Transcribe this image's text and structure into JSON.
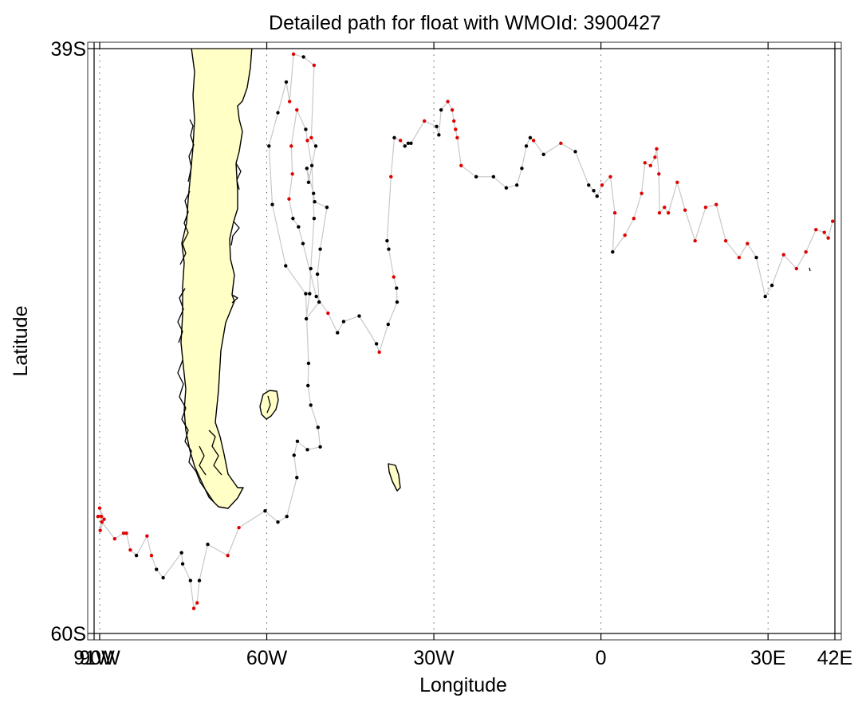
{
  "chart_data": {
    "type": "scatter",
    "title": "Detailed path for float with WMOId: 3900427",
    "xlabel": "Longitude",
    "ylabel": "Latitude",
    "xlim": [
      -91,
      42
    ],
    "ylim": [
      -60,
      -39
    ],
    "x_ticks": [
      {
        "value": -91,
        "label": "91W"
      },
      {
        "value": -90,
        "label": "90W"
      },
      {
        "value": -60,
        "label": "60W"
      },
      {
        "value": -30,
        "label": "30W"
      },
      {
        "value": 0,
        "label": "0"
      },
      {
        "value": 30,
        "label": "30E"
      },
      {
        "value": 42,
        "label": "42E"
      }
    ],
    "y_ticks": [
      {
        "value": -39,
        "label": "39S"
      },
      {
        "value": -60,
        "label": "60S"
      }
    ],
    "grid_x": [
      -90,
      -60,
      -30,
      0,
      30
    ],
    "colors": {
      "land": "#ffffc6",
      "track": "#c8c8c8",
      "point_red": "#e00000",
      "point_black": "#000000"
    },
    "series": [
      {
        "values": [
          [
            -90.3,
            -55.8,
            "r"
          ],
          [
            -89.7,
            -55.8,
            "r"
          ],
          [
            -89.9,
            -56.3,
            "r"
          ],
          [
            -89.2,
            -55.9,
            "r"
          ],
          [
            -90.0,
            -55.5,
            "r"
          ],
          [
            -89.6,
            -56.0,
            "r"
          ],
          [
            -87.3,
            -56.6,
            "r"
          ],
          [
            -85.7,
            -56.4,
            "r"
          ],
          [
            -85.2,
            -56.4,
            "r"
          ],
          [
            -84.5,
            -57.0,
            "r"
          ],
          [
            -83.4,
            -57.2,
            "k"
          ],
          [
            -81.5,
            -56.5,
            "r"
          ],
          [
            -80.7,
            -57.2,
            "r"
          ],
          [
            -79.8,
            -57.7,
            "k"
          ],
          [
            -78.6,
            -58.0,
            "k"
          ],
          [
            -75.3,
            -57.1,
            "k"
          ],
          [
            -75.1,
            -57.5,
            "k"
          ],
          [
            -73.7,
            -58.1,
            "k"
          ],
          [
            -73.1,
            -59.1,
            "r"
          ],
          [
            -72.5,
            -58.9,
            "r"
          ],
          [
            -72.1,
            -58.1,
            "k"
          ],
          [
            -70.6,
            -56.8,
            "k"
          ],
          [
            -67.0,
            -57.2,
            "r"
          ],
          [
            -65.0,
            -56.2,
            "r"
          ],
          [
            -60.3,
            -55.6,
            "k"
          ],
          [
            -58.0,
            -56.0,
            "k"
          ],
          [
            -56.4,
            -55.8,
            "k"
          ],
          [
            -54.6,
            -54.4,
            "k"
          ],
          [
            -55.1,
            -53.6,
            "k"
          ],
          [
            -54.5,
            -53.1,
            "k"
          ],
          [
            -52.7,
            -53.4,
            "k"
          ],
          [
            -50.4,
            -53.3,
            "k"
          ],
          [
            -50.8,
            -52.6,
            "k"
          ],
          [
            -52.1,
            -51.8,
            "k"
          ],
          [
            -52.6,
            -51.1,
            "k"
          ],
          [
            -52.5,
            -50.3,
            "k"
          ],
          [
            -53.0,
            -47.8,
            "k"
          ],
          [
            -56.6,
            -46.8,
            "k"
          ],
          [
            -59.0,
            -44.6,
            "k"
          ],
          [
            -59.6,
            -42.5,
            "k"
          ],
          [
            -58.0,
            -41.3,
            "k"
          ],
          [
            -56.5,
            -40.2,
            "k"
          ],
          [
            -55.9,
            -40.9,
            "r"
          ],
          [
            -55.2,
            -39.2,
            "r"
          ],
          [
            -53.4,
            -39.3,
            "k"
          ],
          [
            -51.5,
            -39.6,
            "r"
          ],
          [
            -52.0,
            -42.2,
            "r"
          ],
          [
            -51.2,
            -42.5,
            "k"
          ],
          [
            -52.5,
            -43.8,
            "k"
          ],
          [
            -52.8,
            -43.3,
            "k"
          ],
          [
            -51.6,
            -44.2,
            "k"
          ],
          [
            -51.4,
            -44.5,
            "k"
          ],
          [
            -49.2,
            -44.7,
            "k"
          ],
          [
            -50.4,
            -46.2,
            "k"
          ],
          [
            -50.9,
            -47.1,
            "k"
          ],
          [
            -50.6,
            -48.1,
            "k"
          ],
          [
            -52.9,
            -48.7,
            "k"
          ],
          [
            -52.3,
            -47.8,
            "k"
          ],
          [
            -52.1,
            -46.9,
            "k"
          ],
          [
            -51.5,
            -45.1,
            "k"
          ],
          [
            -51.9,
            -43.2,
            "k"
          ],
          [
            -52.7,
            -42.3,
            "r"
          ],
          [
            -53.0,
            -41.9,
            "k"
          ],
          [
            -54.6,
            -41.2,
            "r"
          ],
          [
            -55.6,
            -42.5,
            "r"
          ],
          [
            -55.4,
            -43.5,
            "r"
          ],
          [
            -56.0,
            -44.4,
            "r"
          ],
          [
            -55.3,
            -45.1,
            "k"
          ],
          [
            -54.3,
            -45.4,
            "k"
          ],
          [
            -53.5,
            -46.0,
            "k"
          ],
          [
            -51.1,
            -47.9,
            "k"
          ],
          [
            -49.0,
            -48.5,
            "r"
          ],
          [
            -47.3,
            -49.2,
            "k"
          ],
          [
            -46.2,
            -48.8,
            "k"
          ],
          [
            -43.4,
            -48.6,
            "k"
          ],
          [
            -40.3,
            -49.6,
            "k"
          ],
          [
            -39.8,
            -49.9,
            "r"
          ],
          [
            -38.2,
            -48.9,
            "k"
          ],
          [
            -36.6,
            -48.1,
            "k"
          ],
          [
            -36.7,
            -47.6,
            "k"
          ],
          [
            -37.2,
            -47.2,
            "r"
          ],
          [
            -38.1,
            -46.2,
            "k"
          ],
          [
            -38.4,
            -45.9,
            "k"
          ],
          [
            -37.7,
            -43.6,
            "r"
          ],
          [
            -37.1,
            -42.2,
            "k"
          ],
          [
            -36.0,
            -42.3,
            "r"
          ],
          [
            -35.2,
            -42.5,
            "k"
          ],
          [
            -34.6,
            -42.4,
            "k"
          ],
          [
            -34.1,
            -42.4,
            "k"
          ],
          [
            -31.7,
            -41.6,
            "r"
          ],
          [
            -29.5,
            -41.8,
            "k"
          ],
          [
            -29.1,
            -42.1,
            "k"
          ],
          [
            -28.7,
            -41.2,
            "k"
          ],
          [
            -27.5,
            -40.9,
            "r"
          ],
          [
            -26.7,
            -41.2,
            "r"
          ],
          [
            -26.4,
            -41.6,
            "r"
          ],
          [
            -26.1,
            -41.9,
            "r"
          ],
          [
            -25.8,
            -42.2,
            "r"
          ],
          [
            -25.1,
            -43.2,
            "r"
          ],
          [
            -22.4,
            -43.6,
            "k"
          ],
          [
            -19.3,
            -43.6,
            "k"
          ],
          [
            -17.0,
            -44.0,
            "k"
          ],
          [
            -15.1,
            -43.9,
            "k"
          ],
          [
            -14.2,
            -43.3,
            "k"
          ],
          [
            -13.4,
            -42.5,
            "k"
          ],
          [
            -12.7,
            -42.2,
            "k"
          ],
          [
            -12.1,
            -42.3,
            "r"
          ],
          [
            -10.3,
            -42.8,
            "k"
          ],
          [
            -7.2,
            -42.4,
            "r"
          ],
          [
            -4.6,
            -42.7,
            "k"
          ],
          [
            -2.2,
            -43.9,
            "k"
          ],
          [
            -1.3,
            -44.1,
            "k"
          ],
          [
            -0.7,
            -44.3,
            "k"
          ],
          [
            0.2,
            -43.9,
            "r"
          ],
          [
            1.7,
            -43.6,
            "r"
          ],
          [
            2.5,
            -44.9,
            "r"
          ],
          [
            2.1,
            -46.3,
            "k"
          ],
          [
            4.3,
            -45.7,
            "r"
          ],
          [
            5.9,
            -45.1,
            "r"
          ],
          [
            7.3,
            -44.2,
            "r"
          ],
          [
            7.9,
            -43.1,
            "r"
          ],
          [
            8.9,
            -43.2,
            "r"
          ],
          [
            9.7,
            -42.9,
            "r"
          ],
          [
            10.0,
            -42.6,
            "r"
          ],
          [
            10.4,
            -43.5,
            "r"
          ],
          [
            10.5,
            -44.9,
            "r"
          ],
          [
            11.4,
            -44.7,
            "r"
          ],
          [
            12.1,
            -44.9,
            "r"
          ],
          [
            13.7,
            -43.8,
            "r"
          ],
          [
            15.1,
            -44.8,
            "r"
          ],
          [
            16.9,
            -45.9,
            "r"
          ],
          [
            18.8,
            -44.7,
            "r"
          ],
          [
            20.7,
            -44.6,
            "r"
          ],
          [
            22.4,
            -45.9,
            "r"
          ],
          [
            24.8,
            -46.5,
            "r"
          ],
          [
            26.3,
            -46.0,
            "r"
          ],
          [
            27.9,
            -46.5,
            "k"
          ],
          [
            29.5,
            -47.9,
            "k"
          ],
          [
            30.7,
            -47.5,
            "k"
          ],
          [
            32.8,
            -46.4,
            "r"
          ],
          [
            35.1,
            -46.9,
            "r"
          ],
          [
            36.8,
            -46.3,
            "r"
          ],
          [
            38.6,
            -45.5,
            "r"
          ],
          [
            40.1,
            -45.6,
            "r"
          ],
          [
            40.8,
            -45.8,
            "r"
          ],
          [
            41.6,
            -45.2,
            "r"
          ]
        ]
      }
    ]
  }
}
